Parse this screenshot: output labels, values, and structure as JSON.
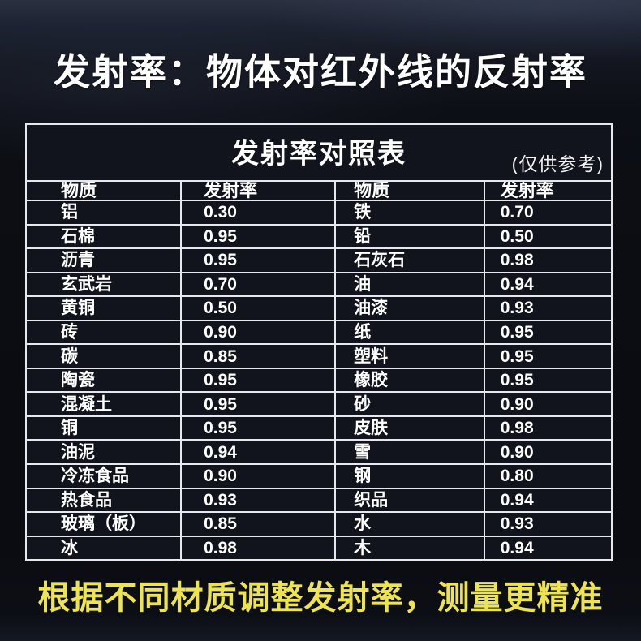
{
  "page": {
    "title": "发射率：物体对红外线的反射率",
    "footer": "根据不同材质调整发射率，测量更精准"
  },
  "chart_data": {
    "type": "table",
    "title": "发射率对照表",
    "note": "(仅供参考)",
    "columns": [
      "物质",
      "发射率",
      "物质",
      "发射率"
    ],
    "rows": [
      [
        "铝",
        "0.30",
        "铁",
        "0.70"
      ],
      [
        "石棉",
        "0.95",
        "铅",
        "0.50"
      ],
      [
        "沥青",
        "0.95",
        "石灰石",
        "0.98"
      ],
      [
        "玄武岩",
        "0.70",
        "油",
        "0.94"
      ],
      [
        "黄铜",
        "0.50",
        "油漆",
        "0.93"
      ],
      [
        "砖",
        "0.90",
        "纸",
        "0.95"
      ],
      [
        "碳",
        "0.85",
        "塑料",
        "0.95"
      ],
      [
        "陶瓷",
        "0.95",
        "橡胶",
        "0.95"
      ],
      [
        "混凝土",
        "0.95",
        "砂",
        "0.90"
      ],
      [
        "铜",
        "0.95",
        "皮肤",
        "0.98"
      ],
      [
        "油泥",
        "0.94",
        "雪",
        "0.90"
      ],
      [
        "冷冻食品",
        "0.90",
        "钢",
        "0.80"
      ],
      [
        "热食品",
        "0.93",
        "织品",
        "0.94"
      ],
      [
        "玻璃（板）",
        "0.85",
        "水",
        "0.93"
      ],
      [
        "冰",
        "0.98",
        "木",
        "0.94"
      ]
    ]
  },
  "colors": {
    "page_background": "#0b0d13",
    "table_cell_background": "#12141d",
    "grid_line": "#e7e8ed",
    "title_text": "#ffffff",
    "footer_text": "#ede44f"
  }
}
